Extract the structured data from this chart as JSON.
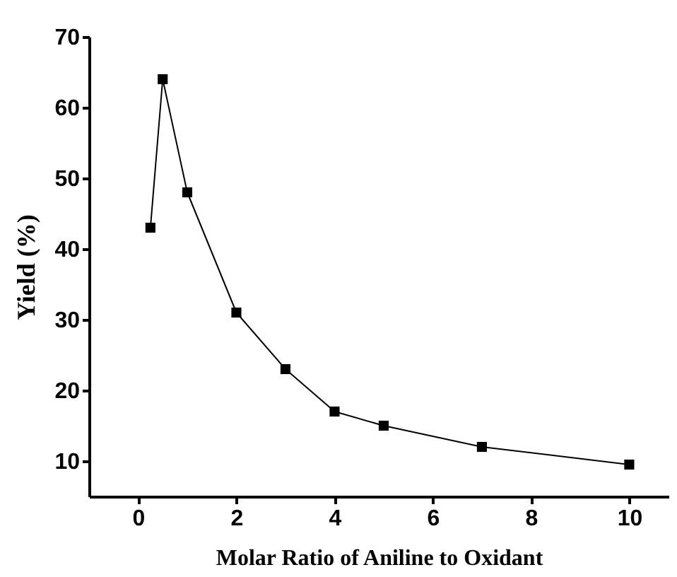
{
  "chart_data": {
    "type": "line",
    "xlabel": "Molar Ratio of Aniline to Oxidant",
    "ylabel": "Yield (%)",
    "x": [
      0.25,
      0.5,
      1,
      2,
      3,
      4,
      5,
      7,
      10
    ],
    "series": [
      {
        "color": "#000000",
        "values": [
          43,
          64,
          48,
          31,
          23,
          17,
          15,
          12,
          9.5
        ]
      }
    ],
    "xlim": [
      -1,
      10.8
    ],
    "ylim": [
      5,
      70
    ],
    "xticks": [
      0,
      2,
      4,
      6,
      8,
      10
    ],
    "yticks": [
      10,
      20,
      30,
      40,
      50,
      60,
      70
    ],
    "marker": "square",
    "line_style": "solid"
  }
}
